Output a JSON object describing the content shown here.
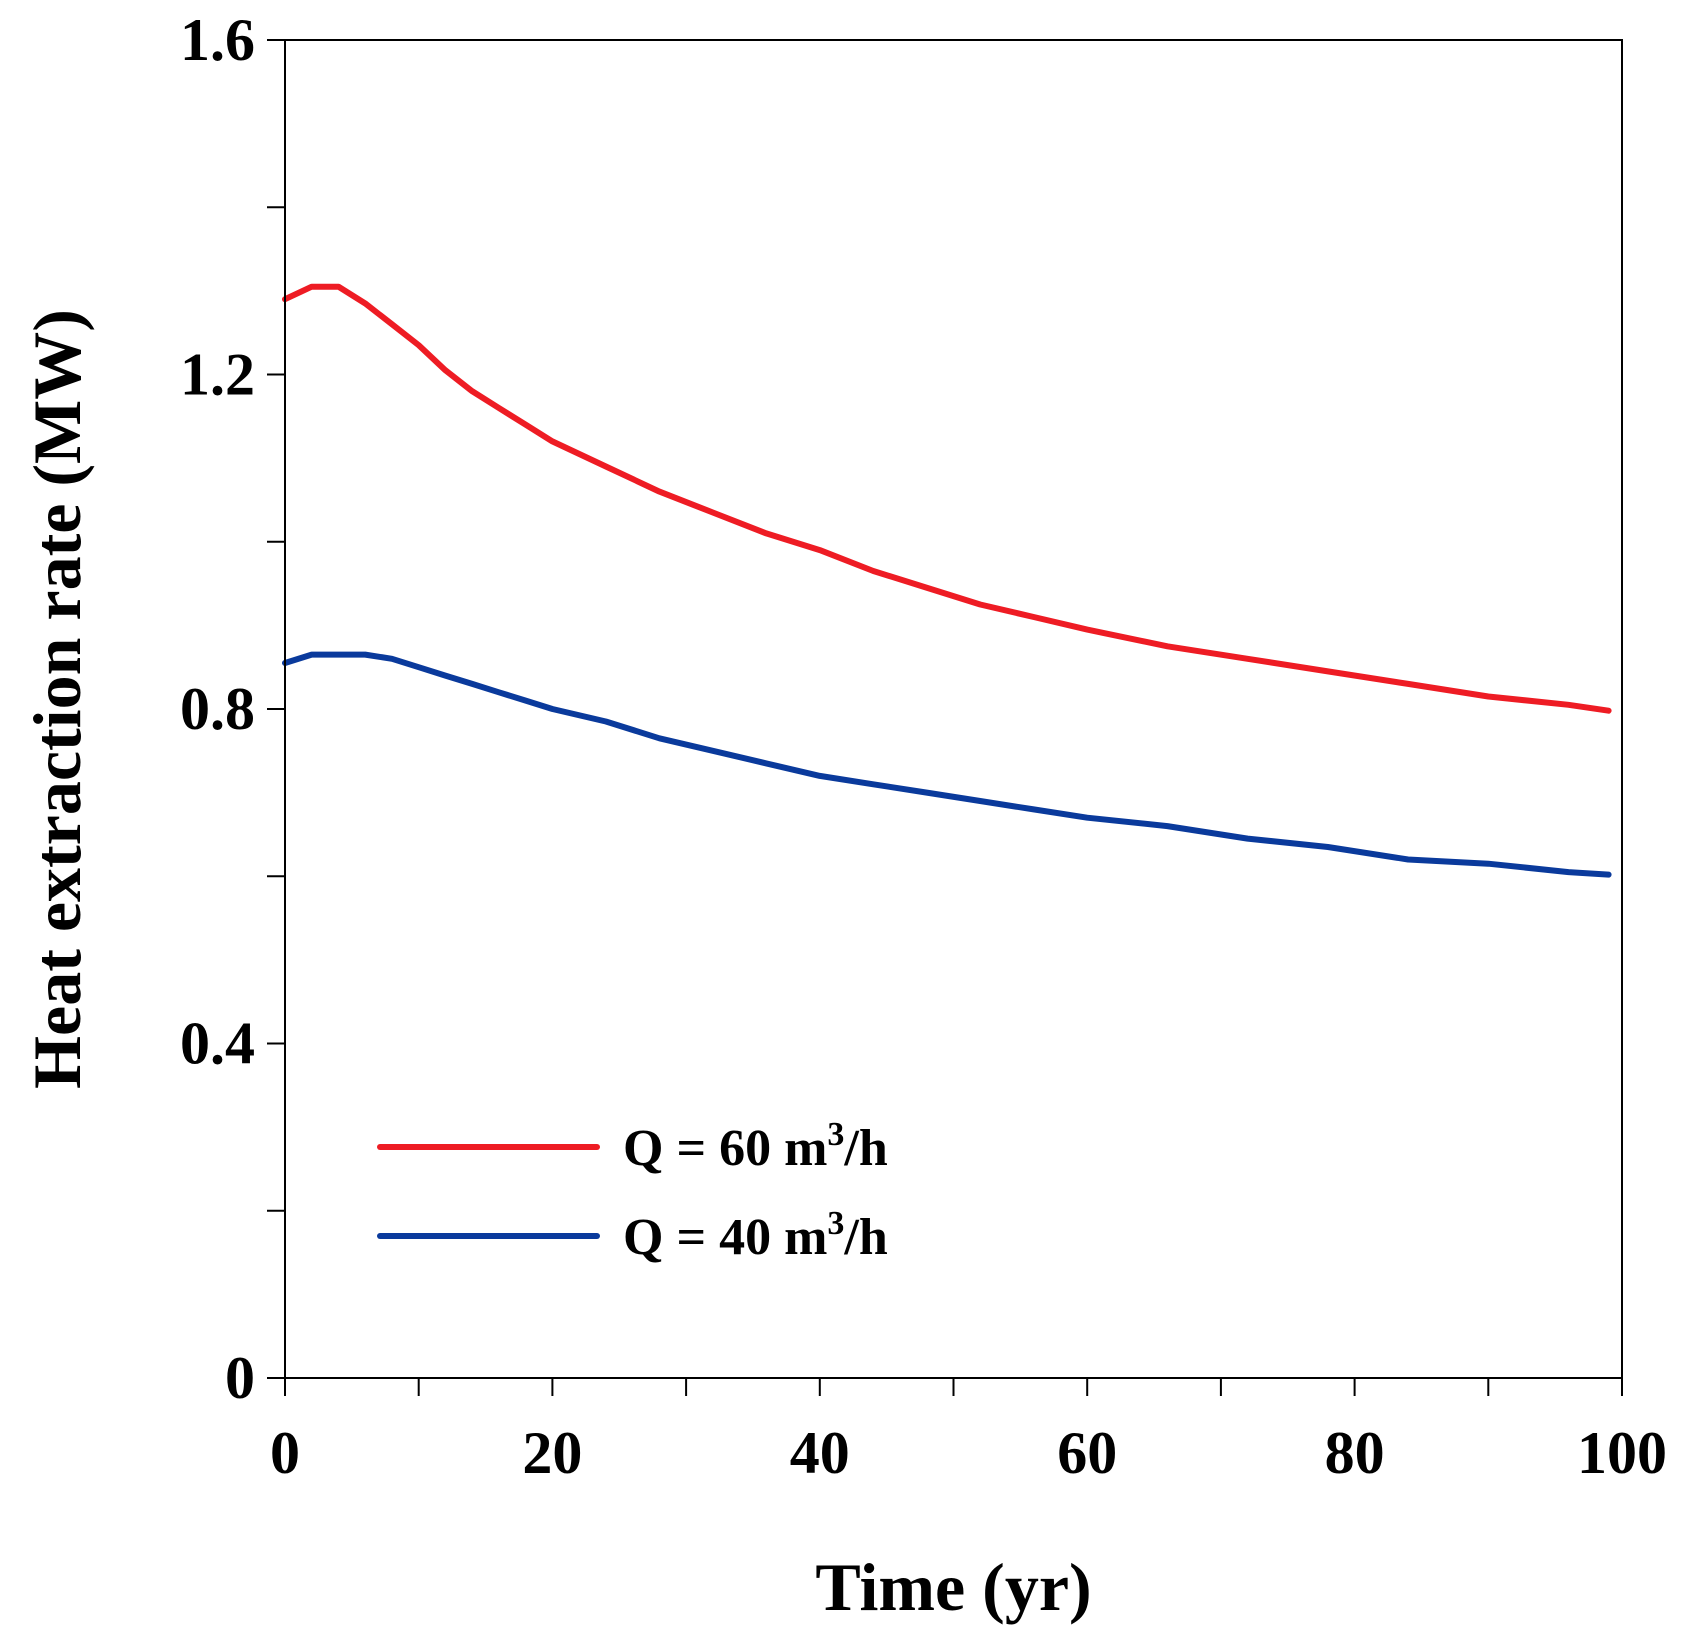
{
  "chart_data": {
    "type": "line",
    "title": "",
    "xlabel": "Time (yr)",
    "ylabel": "Heat extraction rate (MW)",
    "xlim": [
      0,
      100
    ],
    "ylim": [
      0,
      1.6
    ],
    "x_ticks": [
      0,
      10,
      20,
      30,
      40,
      50,
      60,
      70,
      80,
      90,
      100
    ],
    "x_tick_labels": [
      "0",
      "20",
      "40",
      "60",
      "80",
      "100"
    ],
    "x_tick_label_values": [
      0,
      20,
      40,
      60,
      80,
      100
    ],
    "y_ticks": [
      0,
      0.2,
      0.4,
      0.6,
      0.8,
      1.0,
      1.2,
      1.4,
      1.6
    ],
    "y_tick_labels": [
      "0",
      "0.4",
      "0.8",
      "1.2",
      "1.6"
    ],
    "y_tick_label_values": [
      0,
      0.4,
      0.8,
      1.2,
      1.6
    ],
    "grid": false,
    "legend_position": "bottom-left",
    "series": [
      {
        "name": "Q = 60 m",
        "name_sup": "3",
        "name_suffix": "/h",
        "color": "#ee1c24",
        "x": [
          0,
          2,
          4,
          6,
          8,
          10,
          12,
          14,
          16,
          18,
          20,
          24,
          28,
          32,
          36,
          40,
          44,
          48,
          52,
          56,
          60,
          66,
          72,
          78,
          84,
          90,
          96,
          99
        ],
        "y": [
          1.29,
          1.305,
          1.305,
          1.285,
          1.26,
          1.235,
          1.205,
          1.18,
          1.16,
          1.14,
          1.12,
          1.09,
          1.06,
          1.035,
          1.01,
          0.99,
          0.965,
          0.945,
          0.925,
          0.91,
          0.895,
          0.875,
          0.86,
          0.845,
          0.83,
          0.815,
          0.805,
          0.798
        ]
      },
      {
        "name": "Q = 40 m",
        "name_sup": "3",
        "name_suffix": "/h",
        "color": "#0a3a9c",
        "x": [
          0,
          2,
          4,
          6,
          8,
          10,
          12,
          14,
          16,
          18,
          20,
          24,
          28,
          32,
          36,
          40,
          44,
          48,
          52,
          56,
          60,
          66,
          72,
          78,
          84,
          90,
          96,
          99
        ],
        "y": [
          0.855,
          0.865,
          0.865,
          0.865,
          0.86,
          0.85,
          0.84,
          0.83,
          0.82,
          0.81,
          0.8,
          0.785,
          0.765,
          0.75,
          0.735,
          0.72,
          0.71,
          0.7,
          0.69,
          0.68,
          0.67,
          0.66,
          0.645,
          0.635,
          0.62,
          0.615,
          0.605,
          0.602
        ]
      }
    ]
  }
}
